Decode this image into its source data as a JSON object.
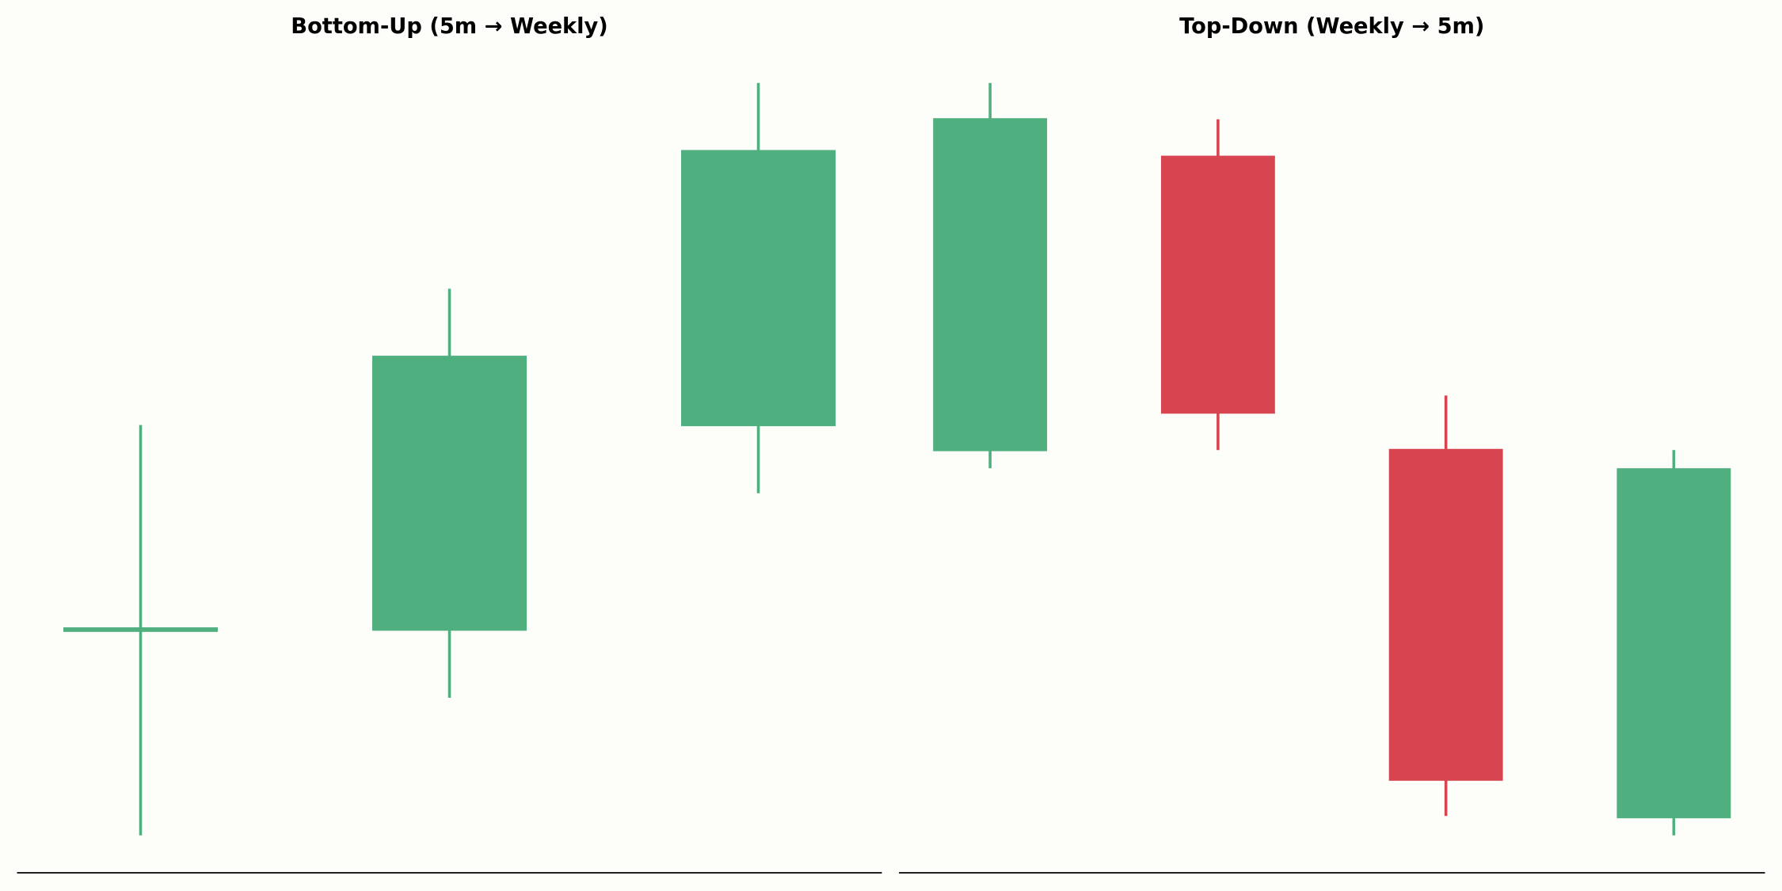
{
  "chart_data": [
    {
      "type": "candlestick",
      "title": "Bottom-Up (5m → Weekly)",
      "open": [
        21.4,
        21.3,
        39.3
      ],
      "high": [
        39.4,
        51.4,
        69.5
      ],
      "low": [
        3.3,
        15.4,
        33.4
      ],
      "close": [
        21.4,
        45.5,
        63.6
      ],
      "up_color": "#4faf7e",
      "down_color": "#d64550",
      "ylim": [
        0,
        70
      ],
      "grid": false
    },
    {
      "type": "candlestick",
      "title": "Top-Down (Weekly → 5m)",
      "open": [
        37.1,
        63.1,
        37.3,
        4.8
      ],
      "high": [
        69.5,
        66.3,
        42.0,
        37.2
      ],
      "low": [
        35.6,
        37.2,
        5.0,
        3.3
      ],
      "close": [
        66.4,
        40.4,
        8.1,
        35.6
      ],
      "up_color": "#4faf7e",
      "down_color": "#d64550",
      "ylim": [
        0,
        70
      ],
      "grid": false
    }
  ]
}
